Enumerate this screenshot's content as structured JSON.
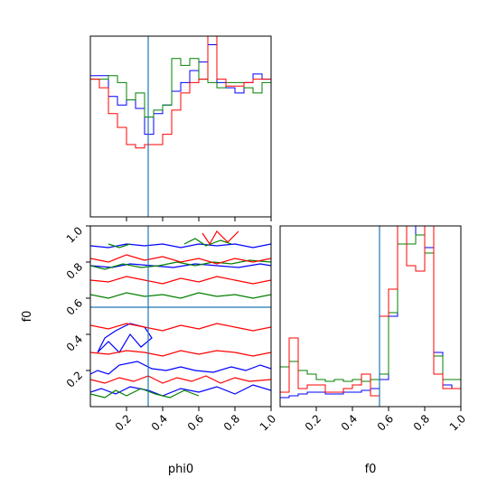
{
  "colors": {
    "blue": "#0000ff",
    "green": "#008000",
    "red": "#ff0000",
    "truth": "#1f77b4"
  },
  "chart_data": {
    "type": "corner",
    "parameters": [
      "phi0",
      "f0"
    ],
    "truths": {
      "phi0": 0.32,
      "f0": 0.55
    },
    "ticks": {
      "phi0": {
        "values": [
          0.2,
          0.4,
          0.6,
          0.8,
          1.0
        ],
        "labels": [
          "0.2",
          "0.4",
          "0.6",
          "0.8",
          "1.0"
        ]
      },
      "f0": {
        "values": [
          0.2,
          0.4,
          0.6,
          0.8,
          1.0
        ],
        "labels": [
          "0.2",
          "0.4",
          "0.6",
          "0.8",
          "1.0"
        ]
      }
    },
    "range": [
      0,
      1
    ],
    "hist_phi0": {
      "bin_edges": [
        0.0,
        0.05,
        0.1,
        0.15,
        0.2,
        0.25,
        0.3,
        0.35,
        0.4,
        0.45,
        0.5,
        0.55,
        0.6,
        0.65,
        0.7,
        0.75,
        0.8,
        0.85,
        0.9,
        0.95,
        1.0
      ],
      "ylim": [
        0,
        1.05
      ],
      "series": [
        {
          "color": "blue",
          "values": [
            0.82,
            0.82,
            0.7,
            0.65,
            0.68,
            0.63,
            0.48,
            0.6,
            0.65,
            0.73,
            0.78,
            0.85,
            0.9,
            1.0,
            0.78,
            0.75,
            0.72,
            0.78,
            0.83,
            0.8
          ]
        },
        {
          "color": "green",
          "values": [
            0.8,
            0.8,
            0.82,
            0.78,
            0.68,
            0.72,
            0.58,
            0.62,
            0.65,
            0.92,
            0.88,
            0.92,
            0.8,
            0.78,
            0.75,
            0.78,
            0.78,
            0.75,
            0.72,
            0.78
          ]
        },
        {
          "color": "red",
          "values": [
            0.8,
            0.75,
            0.6,
            0.52,
            0.42,
            0.4,
            0.42,
            0.42,
            0.48,
            0.62,
            0.72,
            0.78,
            0.8,
            1.05,
            0.8,
            0.76,
            0.76,
            0.78,
            0.8,
            0.8
          ]
        }
      ]
    },
    "hist_f0": {
      "bin_edges": [
        0.0,
        0.05,
        0.1,
        0.15,
        0.2,
        0.25,
        0.3,
        0.35,
        0.4,
        0.45,
        0.5,
        0.55,
        0.6,
        0.65,
        0.7,
        0.75,
        0.8,
        0.85,
        0.9,
        0.95,
        1.0
      ],
      "ylim": [
        0,
        1.0
      ],
      "series": [
        {
          "color": "blue",
          "values": [
            0.05,
            0.06,
            0.07,
            0.08,
            0.08,
            0.07,
            0.07,
            0.08,
            0.08,
            0.09,
            0.1,
            0.15,
            0.5,
            1.0,
            0.9,
            1.0,
            0.88,
            0.3,
            0.12,
            0.1
          ]
        },
        {
          "color": "green",
          "values": [
            0.22,
            0.25,
            0.2,
            0.18,
            0.15,
            0.14,
            0.15,
            0.14,
            0.15,
            0.14,
            0.15,
            0.18,
            0.52,
            0.9,
            0.9,
            0.95,
            0.85,
            0.28,
            0.15,
            0.15
          ]
        },
        {
          "color": "red",
          "values": [
            0.08,
            0.38,
            0.1,
            0.12,
            0.12,
            0.08,
            0.08,
            0.1,
            0.12,
            0.18,
            0.06,
            0.5,
            0.65,
            1.0,
            0.78,
            0.75,
            1.0,
            0.18,
            0.1,
            0.1
          ]
        }
      ]
    },
    "contours_2d": {
      "x_param": "phi0",
      "y_param": "f0",
      "series": [
        {
          "color": "blue",
          "levels": [
            [
              [
                0.0,
                0.18
              ],
              [
                0.04,
                0.2
              ],
              [
                0.1,
                0.18
              ],
              [
                0.16,
                0.23
              ],
              [
                0.26,
                0.25
              ],
              [
                0.34,
                0.21
              ],
              [
                0.42,
                0.2
              ],
              [
                0.5,
                0.22
              ],
              [
                0.58,
                0.2
              ],
              [
                0.68,
                0.19
              ],
              [
                0.78,
                0.22
              ],
              [
                0.86,
                0.2
              ],
              [
                0.94,
                0.23
              ],
              [
                1.0,
                0.21
              ]
            ],
            [
              [
                0.0,
                0.08
              ],
              [
                0.06,
                0.1
              ],
              [
                0.14,
                0.07
              ],
              [
                0.22,
                0.11
              ],
              [
                0.32,
                0.09
              ],
              [
                0.4,
                0.06
              ],
              [
                0.5,
                0.1
              ],
              [
                0.6,
                0.08
              ],
              [
                0.7,
                0.11
              ],
              [
                0.8,
                0.07
              ],
              [
                0.9,
                0.12
              ],
              [
                1.0,
                0.09
              ]
            ],
            [
              [
                0.0,
                0.89
              ],
              [
                0.1,
                0.88
              ],
              [
                0.2,
                0.9
              ],
              [
                0.3,
                0.89
              ],
              [
                0.4,
                0.9
              ],
              [
                0.5,
                0.88
              ],
              [
                0.6,
                0.9
              ],
              [
                0.7,
                0.89
              ],
              [
                0.8,
                0.9
              ],
              [
                0.9,
                0.88
              ],
              [
                1.0,
                0.9
              ]
            ],
            [
              [
                0.0,
                0.78
              ],
              [
                0.12,
                0.77
              ],
              [
                0.22,
                0.79
              ],
              [
                0.34,
                0.78
              ],
              [
                0.46,
                0.77
              ],
              [
                0.58,
                0.79
              ],
              [
                0.7,
                0.78
              ],
              [
                0.82,
                0.77
              ],
              [
                0.94,
                0.79
              ],
              [
                1.0,
                0.78
              ]
            ],
            [
              [
                0.04,
                0.3
              ],
              [
                0.1,
                0.36
              ],
              [
                0.16,
                0.3
              ],
              [
                0.22,
                0.4
              ],
              [
                0.28,
                0.33
              ],
              [
                0.34,
                0.38
              ],
              [
                0.3,
                0.44
              ],
              [
                0.22,
                0.46
              ],
              [
                0.14,
                0.42
              ],
              [
                0.08,
                0.38
              ],
              [
                0.04,
                0.3
              ]
            ]
          ]
        },
        {
          "color": "green",
          "levels": [
            [
              [
                0.0,
                0.78
              ],
              [
                0.08,
                0.76
              ],
              [
                0.18,
                0.79
              ],
              [
                0.28,
                0.77
              ],
              [
                0.38,
                0.78
              ],
              [
                0.48,
                0.8
              ],
              [
                0.58,
                0.78
              ],
              [
                0.68,
                0.8
              ],
              [
                0.78,
                0.79
              ],
              [
                0.88,
                0.81
              ],
              [
                1.0,
                0.8
              ]
            ],
            [
              [
                0.0,
                0.62
              ],
              [
                0.1,
                0.6
              ],
              [
                0.2,
                0.63
              ],
              [
                0.3,
                0.61
              ],
              [
                0.4,
                0.62
              ],
              [
                0.5,
                0.6
              ],
              [
                0.6,
                0.63
              ],
              [
                0.7,
                0.61
              ],
              [
                0.8,
                0.62
              ],
              [
                0.9,
                0.6
              ],
              [
                1.0,
                0.62
              ]
            ],
            [
              [
                0.0,
                0.07
              ],
              [
                0.08,
                0.05
              ],
              [
                0.14,
                0.09
              ],
              [
                0.2,
                0.06
              ],
              [
                0.28,
                0.1
              ],
              [
                0.36,
                0.07
              ],
              [
                0.44,
                0.05
              ],
              [
                0.52,
                0.09
              ],
              [
                0.6,
                0.06
              ]
            ],
            [
              [
                0.1,
                0.9
              ],
              [
                0.16,
                0.88
              ],
              [
                0.22,
                0.9
              ]
            ],
            [
              [
                0.52,
                0.9
              ],
              [
                0.58,
                0.93
              ],
              [
                0.64,
                0.89
              ],
              [
                0.72,
                0.92
              ],
              [
                0.78,
                0.9
              ]
            ]
          ]
        },
        {
          "color": "red",
          "levels": [
            [
              [
                0.0,
                0.82
              ],
              [
                0.1,
                0.8
              ],
              [
                0.2,
                0.84
              ],
              [
                0.3,
                0.81
              ],
              [
                0.4,
                0.83
              ],
              [
                0.5,
                0.8
              ],
              [
                0.6,
                0.82
              ],
              [
                0.7,
                0.79
              ],
              [
                0.8,
                0.82
              ],
              [
                0.9,
                0.8
              ],
              [
                1.0,
                0.82
              ]
            ],
            [
              [
                0.0,
                0.7
              ],
              [
                0.1,
                0.69
              ],
              [
                0.2,
                0.72
              ],
              [
                0.3,
                0.7
              ],
              [
                0.4,
                0.68
              ],
              [
                0.5,
                0.71
              ],
              [
                0.6,
                0.69
              ],
              [
                0.7,
                0.72
              ],
              [
                0.8,
                0.7
              ],
              [
                0.9,
                0.68
              ],
              [
                1.0,
                0.7
              ]
            ],
            [
              [
                0.0,
                0.45
              ],
              [
                0.1,
                0.43
              ],
              [
                0.2,
                0.46
              ],
              [
                0.3,
                0.44
              ],
              [
                0.4,
                0.42
              ],
              [
                0.5,
                0.45
              ],
              [
                0.6,
                0.43
              ],
              [
                0.7,
                0.46
              ],
              [
                0.8,
                0.44
              ],
              [
                0.9,
                0.42
              ],
              [
                1.0,
                0.44
              ]
            ],
            [
              [
                0.0,
                0.3
              ],
              [
                0.1,
                0.29
              ],
              [
                0.2,
                0.31
              ],
              [
                0.3,
                0.3
              ],
              [
                0.4,
                0.28
              ],
              [
                0.5,
                0.31
              ],
              [
                0.6,
                0.29
              ],
              [
                0.7,
                0.31
              ],
              [
                0.8,
                0.3
              ],
              [
                0.9,
                0.28
              ],
              [
                1.0,
                0.3
              ]
            ],
            [
              [
                0.0,
                0.15
              ],
              [
                0.08,
                0.13
              ],
              [
                0.16,
                0.16
              ],
              [
                0.24,
                0.14
              ],
              [
                0.32,
                0.17
              ],
              [
                0.4,
                0.13
              ],
              [
                0.48,
                0.16
              ],
              [
                0.56,
                0.14
              ],
              [
                0.64,
                0.17
              ],
              [
                0.72,
                0.13
              ],
              [
                0.8,
                0.16
              ],
              [
                0.88,
                0.14
              ],
              [
                1.0,
                0.15
              ]
            ],
            [
              [
                0.62,
                0.96
              ],
              [
                0.66,
                0.9
              ],
              [
                0.7,
                0.97
              ],
              [
                0.76,
                0.91
              ],
              [
                0.82,
                0.97
              ]
            ]
          ]
        }
      ]
    }
  }
}
